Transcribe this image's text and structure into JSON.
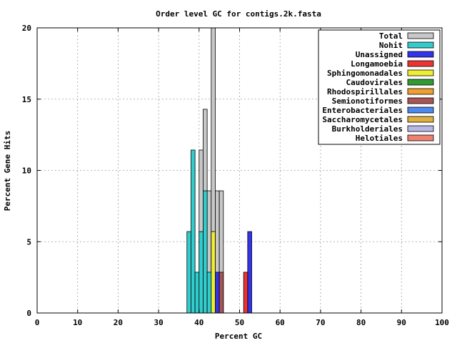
{
  "chart_data": {
    "type": "bar",
    "title": "Order level GC for contigs.2k.fasta",
    "xlabel": "Percent GC",
    "ylabel": "Percent Gene Hits",
    "xlim": [
      0,
      100
    ],
    "ylim": [
      0,
      20
    ],
    "xticks": [
      0,
      10,
      20,
      30,
      40,
      50,
      60,
      70,
      80,
      90,
      100
    ],
    "yticks": [
      0,
      5,
      10,
      15,
      20
    ],
    "grid": true,
    "legend_position": "top-right",
    "bin_width": 1,
    "series": [
      {
        "name": "Total",
        "color": "#c8c8c8",
        "x": [
          40,
          41,
          42,
          43,
          44,
          45
        ],
        "values": [
          11.43,
          14.29,
          8.57,
          20.0,
          8.57,
          8.57
        ]
      },
      {
        "name": "Nohit",
        "color": "#33cccc",
        "x": [
          37,
          38,
          39,
          40,
          41,
          42
        ],
        "values": [
          5.71,
          11.43,
          2.86,
          5.71,
          8.57,
          2.86
        ]
      },
      {
        "name": "Unassigned",
        "color": "#3333ee",
        "x": [
          44,
          52
        ],
        "values": [
          2.86,
          5.71
        ]
      },
      {
        "name": "Longamoebia",
        "color": "#ee3333",
        "x": [
          51
        ],
        "values": [
          2.86
        ]
      },
      {
        "name": "Sphingomonadales",
        "color": "#eeee33",
        "x": [
          43
        ],
        "values": [
          5.71
        ]
      },
      {
        "name": "Caudovirales",
        "color": "#339933",
        "x": [],
        "values": []
      },
      {
        "name": "Rhodospirillales",
        "color": "#f0a030",
        "x": [],
        "values": []
      },
      {
        "name": "Semionotiformes",
        "color": "#aa5555",
        "x": [
          45
        ],
        "values": [
          2.86
        ]
      },
      {
        "name": "Enterobacteriales",
        "color": "#4d88ee",
        "x": [],
        "values": []
      },
      {
        "name": "Saccharomycetales",
        "color": "#e0b040",
        "x": [],
        "values": []
      },
      {
        "name": "Burkholderiales",
        "color": "#b8b8e8",
        "x": [],
        "values": []
      },
      {
        "name": "Helotiales",
        "color": "#f08070",
        "x": [],
        "values": []
      }
    ]
  }
}
